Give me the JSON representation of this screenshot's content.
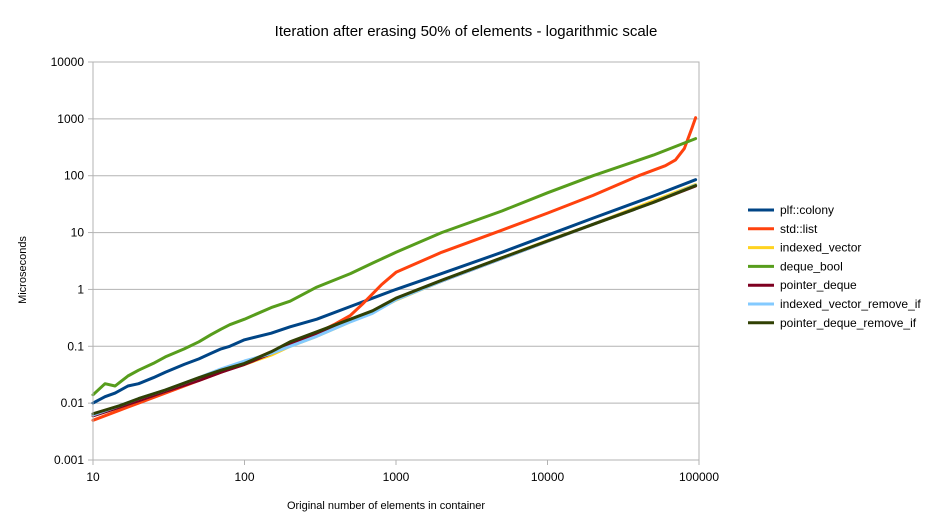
{
  "chart_data": {
    "type": "line",
    "title": "Iteration after erasing 50% of elements - logarithmic scale",
    "xlabel": "Original number of elements in container",
    "ylabel": "Microseconds",
    "x_scale": "log",
    "y_scale": "log",
    "xlim": [
      10,
      100000
    ],
    "ylim": [
      0.001,
      10000
    ],
    "x_ticks": [
      10,
      100,
      1000,
      10000,
      100000
    ],
    "x_tick_labels": [
      "10",
      "100",
      "1000",
      "10000",
      "100000"
    ],
    "y_ticks": [
      0.001,
      0.01,
      0.1,
      1,
      10,
      100,
      1000,
      10000
    ],
    "y_tick_labels": [
      "0.001",
      "0.01",
      "0.1",
      "1",
      "10",
      "100",
      "1000",
      "10000"
    ],
    "grid": "horizontal",
    "legend_position": "right",
    "series": [
      {
        "name": "plf::colony",
        "color": "#004586",
        "x": [
          10,
          12,
          14,
          17,
          20,
          25,
          30,
          40,
          50,
          60,
          70,
          80,
          100,
          150,
          200,
          300,
          500,
          700,
          1000,
          2000,
          5000,
          10000,
          20000,
          50000,
          95000
        ],
        "y": [
          0.01,
          0.013,
          0.015,
          0.02,
          0.022,
          0.028,
          0.035,
          0.048,
          0.06,
          0.075,
          0.09,
          0.1,
          0.13,
          0.17,
          0.22,
          0.3,
          0.5,
          0.7,
          1.0,
          1.9,
          4.5,
          9.0,
          18,
          44,
          85
        ]
      },
      {
        "name": "std::list",
        "color": "#ff420e",
        "x": [
          10,
          15,
          20,
          30,
          50,
          70,
          100,
          150,
          200,
          300,
          400,
          500,
          600,
          800,
          1000,
          2000,
          5000,
          10000,
          20000,
          40000,
          60000,
          70000,
          80000,
          90000,
          95000
        ],
        "y": [
          0.005,
          0.0075,
          0.01,
          0.015,
          0.025,
          0.035,
          0.05,
          0.08,
          0.11,
          0.17,
          0.25,
          0.35,
          0.55,
          1.2,
          2.0,
          4.5,
          11,
          22,
          45,
          100,
          150,
          190,
          300,
          700,
          1050
        ]
      },
      {
        "name": "indexed_vector",
        "color": "#ffd320",
        "x": [
          10,
          15,
          20,
          30,
          50,
          70,
          100,
          150,
          200,
          300,
          500,
          700,
          1000,
          2000,
          5000,
          10000,
          20000,
          50000,
          95000
        ],
        "y": [
          0.006,
          0.0085,
          0.011,
          0.016,
          0.028,
          0.036,
          0.048,
          0.07,
          0.1,
          0.15,
          0.27,
          0.4,
          0.65,
          1.4,
          3.6,
          7.2,
          14,
          36,
          70
        ]
      },
      {
        "name": "deque_bool",
        "color": "#579d1c",
        "x": [
          10,
          12,
          14,
          17,
          20,
          25,
          30,
          40,
          50,
          60,
          70,
          80,
          100,
          150,
          200,
          300,
          500,
          700,
          1000,
          2000,
          5000,
          10000,
          20000,
          50000,
          95000
        ],
        "y": [
          0.014,
          0.022,
          0.02,
          0.03,
          0.038,
          0.05,
          0.065,
          0.09,
          0.12,
          0.16,
          0.2,
          0.24,
          0.3,
          0.48,
          0.62,
          1.1,
          1.9,
          2.9,
          4.5,
          10,
          24,
          50,
          100,
          230,
          450
        ]
      },
      {
        "name": "pointer_deque",
        "color": "#7e0021",
        "x": [
          10,
          15,
          20,
          30,
          50,
          70,
          100,
          150,
          200,
          300,
          500,
          700,
          1000,
          2000,
          5000,
          10000,
          20000,
          50000,
          95000
        ],
        "y": [
          0.006,
          0.0085,
          0.011,
          0.016,
          0.025,
          0.035,
          0.048,
          0.075,
          0.11,
          0.17,
          0.29,
          0.4,
          0.68,
          1.4,
          3.5,
          7.0,
          14,
          34,
          66
        ]
      },
      {
        "name": "indexed_vector_remove_if",
        "color": "#83caff",
        "x": [
          10,
          15,
          20,
          30,
          50,
          70,
          100,
          150,
          200,
          300,
          500,
          700,
          1000,
          2000,
          5000,
          10000,
          20000,
          50000,
          95000
        ],
        "y": [
          0.0062,
          0.009,
          0.012,
          0.017,
          0.028,
          0.04,
          0.055,
          0.075,
          0.1,
          0.15,
          0.27,
          0.38,
          0.66,
          1.4,
          3.5,
          7.0,
          14,
          34,
          68
        ]
      },
      {
        "name": "pointer_deque_remove_if",
        "color": "#314004",
        "x": [
          10,
          15,
          20,
          30,
          50,
          70,
          100,
          150,
          200,
          300,
          500,
          700,
          1000,
          2000,
          5000,
          10000,
          20000,
          50000,
          95000
        ],
        "y": [
          0.0065,
          0.009,
          0.012,
          0.017,
          0.028,
          0.038,
          0.05,
          0.08,
          0.12,
          0.18,
          0.3,
          0.42,
          0.7,
          1.45,
          3.6,
          7.1,
          14,
          34,
          67
        ]
      }
    ]
  }
}
